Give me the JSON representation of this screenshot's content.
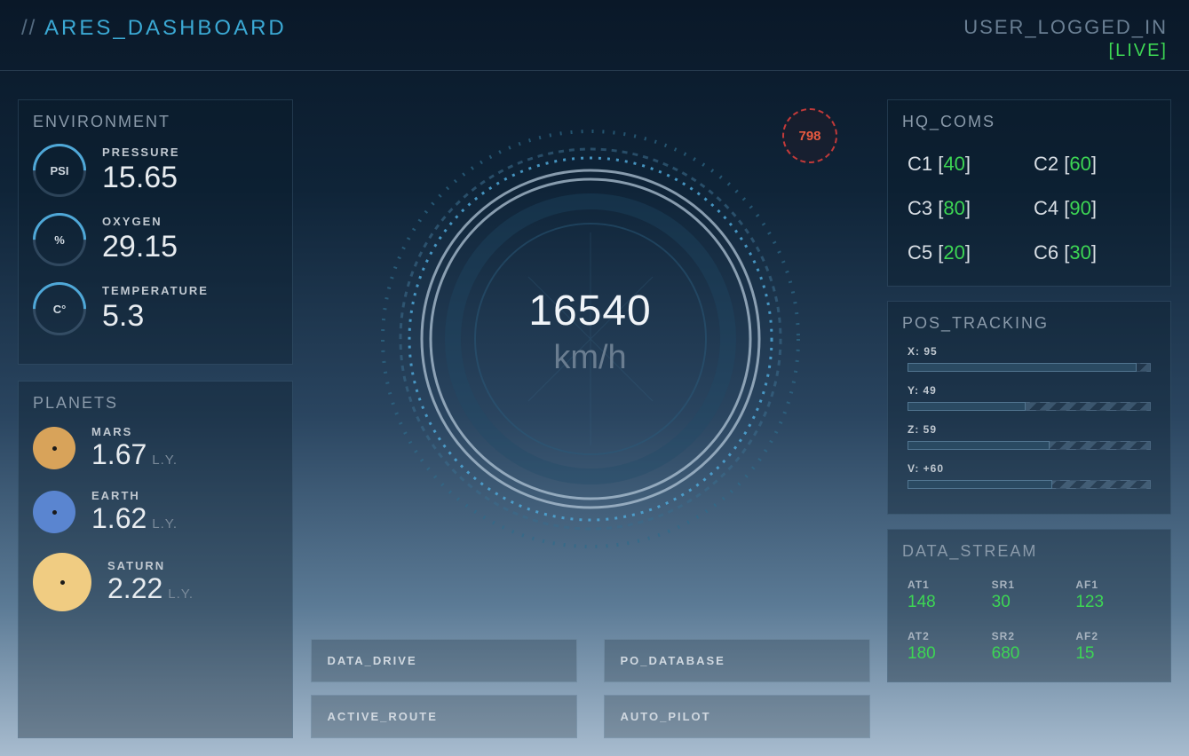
{
  "header": {
    "prefix": "// ",
    "title": "ARES_DASHBOARD",
    "user_label": "USER_LOGGED_IN",
    "live_label": "[LIVE]"
  },
  "colors": {
    "accent": "#3ba9d4",
    "green": "#3dd654",
    "red": "#e85a40",
    "planet_mars": "#d8a35a",
    "planet_earth": "#5a85d0",
    "planet_saturn": "#f0cc82"
  },
  "environment": {
    "title": "ENVIRONMENT",
    "items": [
      {
        "unit": "PSI",
        "label": "PRESSURE",
        "value": "15.65"
      },
      {
        "unit": "%",
        "label": "OXYGEN",
        "value": "29.15"
      },
      {
        "unit": "C°",
        "label": "TEMPERATURE",
        "value": "5.3"
      }
    ]
  },
  "planets": {
    "title": "PLANETS",
    "unit": "L.Y.",
    "items": [
      {
        "label": "MARS",
        "value": "1.67",
        "color": "#d8a35a",
        "size": 48
      },
      {
        "label": "EARTH",
        "value": "1.62",
        "color": "#5a85d0",
        "size": 48
      },
      {
        "label": "SATURN",
        "value": "2.22",
        "color": "#f0cc82",
        "size": 66
      }
    ]
  },
  "gauge": {
    "speed_value": "16540",
    "speed_unit": "km/h",
    "alert_value": "798",
    "ring_colors": {
      "outer_dots": "#2f6b8a",
      "mid_ring": "#a8bccf",
      "inner_ring": "#3a5d78",
      "tick_ring": "#4fa8d8"
    }
  },
  "buttons": [
    "DATA_DRIVE",
    "PO_DATABASE",
    "ACTIVE_ROUTE",
    "AUTO_PILOT"
  ],
  "hq_coms": {
    "title": "HQ_COMS",
    "items": [
      {
        "label": "C1",
        "value": "40"
      },
      {
        "label": "C2",
        "value": "60"
      },
      {
        "label": "C3",
        "value": "80"
      },
      {
        "label": "C4",
        "value": "90"
      },
      {
        "label": "C5",
        "value": "20"
      },
      {
        "label": "C6",
        "value": "30"
      }
    ]
  },
  "pos_tracking": {
    "title": "POS_TRACKING",
    "items": [
      {
        "label": "X: 95",
        "pct": 95
      },
      {
        "label": "Y: 49",
        "pct": 49
      },
      {
        "label": "Z: 59",
        "pct": 59
      },
      {
        "label": "V: +60",
        "pct": 60
      }
    ]
  },
  "data_stream": {
    "title": "DATA_STREAM",
    "items": [
      {
        "label": "AT1",
        "value": "148"
      },
      {
        "label": "SR1",
        "value": "30"
      },
      {
        "label": "AF1",
        "value": "123"
      },
      {
        "label": "AT2",
        "value": "180"
      },
      {
        "label": "SR2",
        "value": "680"
      },
      {
        "label": "AF2",
        "value": "15"
      }
    ]
  }
}
